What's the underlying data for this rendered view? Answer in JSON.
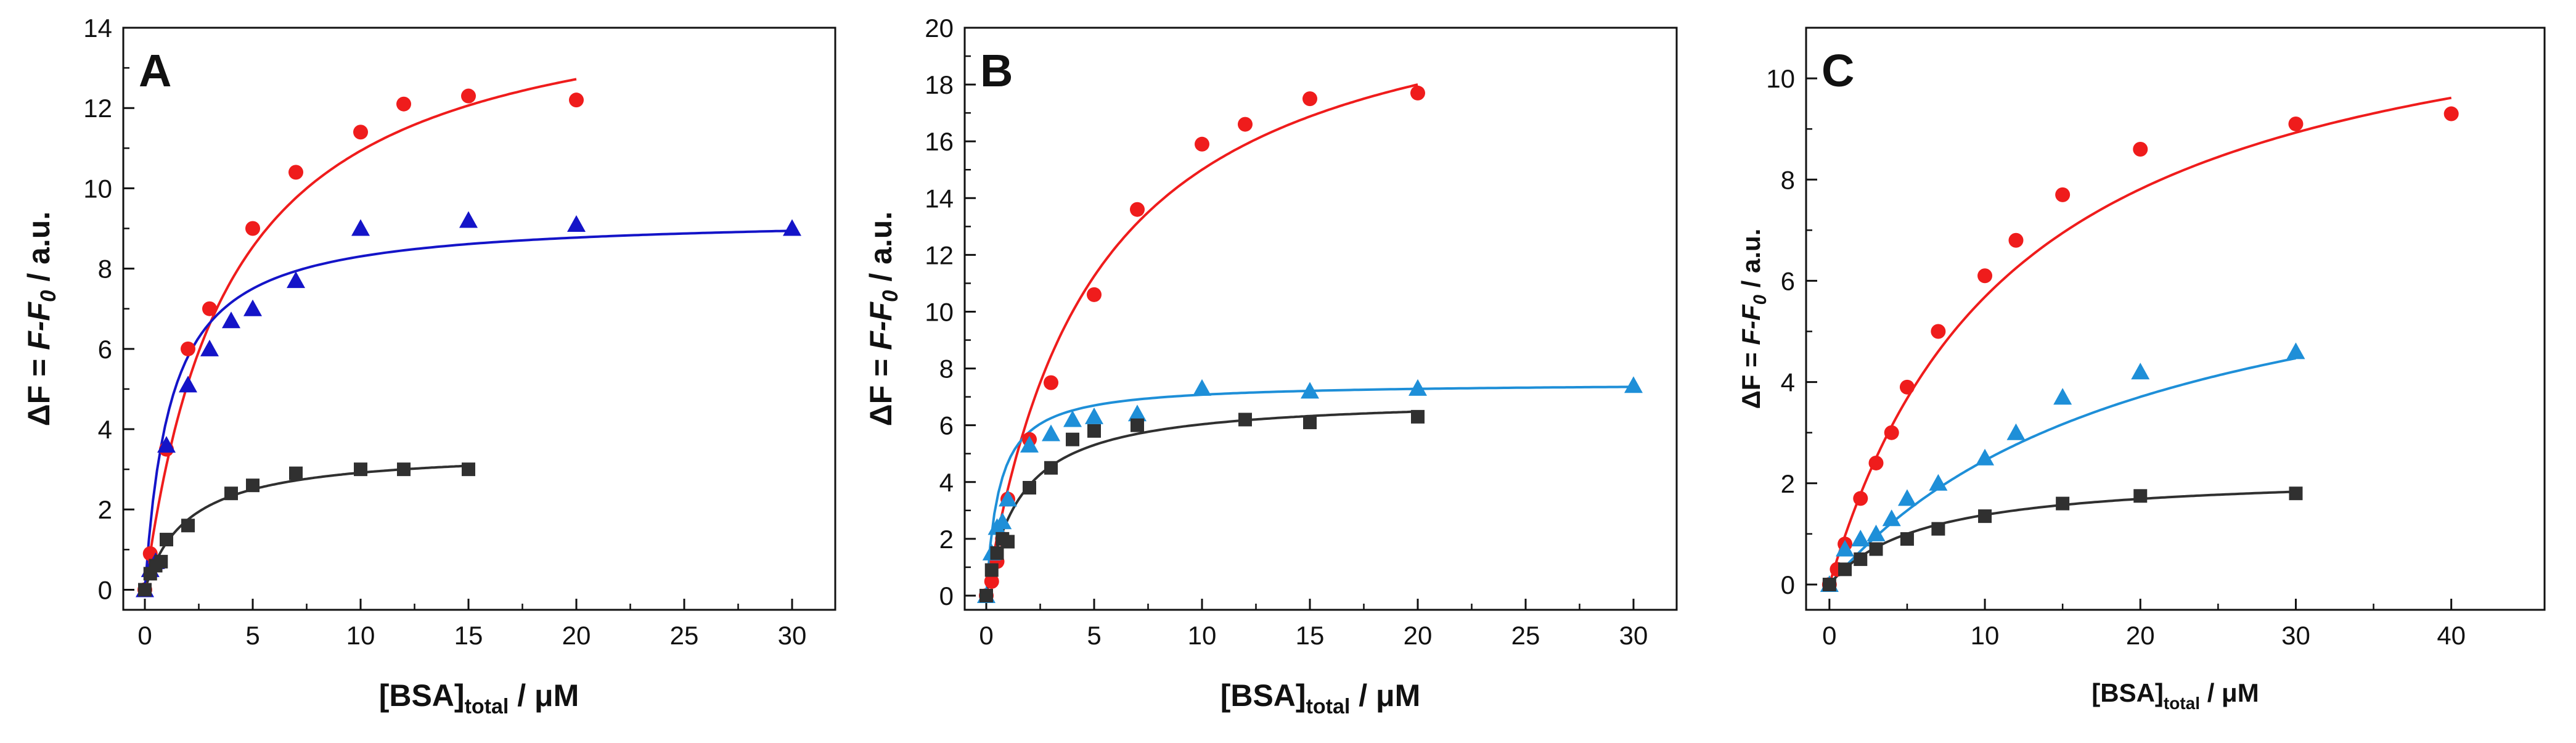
{
  "figure": {
    "colors": {
      "red": "#ef1c1c",
      "blue": "#1414c8",
      "lightblue": "#1e8fd8",
      "black": "#303030"
    }
  },
  "chart_data": [
    {
      "type": "scatter",
      "panel_label": "A",
      "xlabel": {
        "main": "[BSA]",
        "sub": "total",
        "unit": " / μM"
      },
      "ylabel": {
        "parts": [
          "ΔF = ",
          "F",
          "-",
          "F",
          "0",
          " / a.u."
        ]
      },
      "xlim": [
        -1,
        32
      ],
      "ylim": [
        -0.5,
        14
      ],
      "xticks": [
        0,
        5,
        10,
        15,
        20,
        25,
        30
      ],
      "yticks": [
        0,
        2,
        4,
        6,
        8,
        10,
        12,
        14
      ],
      "series": [
        {
          "name": "red",
          "marker": "circle",
          "color": "#ef1c1c",
          "x": [
            0,
            0.25,
            1,
            2,
            3,
            5,
            7,
            10,
            12,
            15,
            20
          ],
          "y": [
            0,
            0.9,
            3.5,
            6.0,
            7.0,
            9.0,
            10.4,
            11.4,
            12.1,
            12.3,
            12.2
          ],
          "fit": {
            "model": "hyperbolic",
            "Fmax": 15.2,
            "Kd": 3.9,
            "xmin": 0,
            "xmax": 20
          }
        },
        {
          "name": "blue",
          "marker": "triangle",
          "color": "#1414c8",
          "x": [
            0,
            0.25,
            0.5,
            1,
            2,
            3,
            4,
            5,
            7,
            10,
            15,
            20,
            30
          ],
          "y": [
            0,
            0.5,
            0.7,
            3.6,
            5.1,
            6.0,
            6.7,
            7.0,
            7.7,
            9.0,
            9.2,
            9.1,
            9.0
          ],
          "fit": {
            "model": "hyperbolic",
            "Fmax": 9.3,
            "Kd": 1.2,
            "xmin": 0,
            "xmax": 30
          }
        },
        {
          "name": "black",
          "marker": "square",
          "color": "#303030",
          "x": [
            0,
            0.25,
            0.5,
            0.75,
            1,
            2,
            4,
            5,
            7,
            10,
            12,
            15
          ],
          "y": [
            0,
            0.4,
            0.6,
            0.7,
            1.25,
            1.6,
            2.4,
            2.6,
            2.9,
            3.0,
            3.0,
            3.0
          ],
          "fit": {
            "model": "hyperbolic",
            "Fmax": 3.5,
            "Kd": 2.0,
            "xmin": 0,
            "xmax": 15
          }
        }
      ]
    },
    {
      "type": "scatter",
      "panel_label": "B",
      "xlabel": {
        "main": "[BSA]",
        "sub": "total",
        "unit": " / μM"
      },
      "ylabel": {
        "parts": [
          "ΔF = ",
          "F",
          "-",
          "F",
          "0",
          " / a.u."
        ]
      },
      "xlim": [
        -1,
        32
      ],
      "ylim": [
        -0.5,
        20
      ],
      "xticks": [
        0,
        5,
        10,
        15,
        20,
        25,
        30
      ],
      "yticks": [
        0,
        2,
        4,
        6,
        8,
        10,
        12,
        14,
        16,
        18,
        20
      ],
      "series": [
        {
          "name": "red",
          "marker": "circle",
          "color": "#ef1c1c",
          "x": [
            0,
            0.25,
            0.5,
            0.75,
            1,
            2,
            3,
            5,
            7,
            10,
            12,
            15,
            20
          ],
          "y": [
            0,
            0.5,
            1.2,
            2.0,
            3.4,
            5.5,
            7.5,
            10.6,
            13.6,
            15.9,
            16.6,
            17.5,
            17.7
          ],
          "fit": {
            "model": "hyperbolic",
            "Fmax": 22.5,
            "Kd": 5.0,
            "xmin": 0,
            "xmax": 20
          }
        },
        {
          "name": "blue",
          "marker": "triangle",
          "color": "#1e8fd8",
          "x": [
            0,
            0.25,
            0.5,
            0.75,
            1,
            2,
            3,
            4,
            5,
            7,
            10,
            15,
            20,
            30
          ],
          "y": [
            0,
            1.5,
            2.4,
            2.6,
            3.4,
            5.3,
            5.7,
            6.2,
            6.3,
            6.4,
            7.3,
            7.2,
            7.3,
            7.4
          ],
          "fit": {
            "model": "hyperbolic",
            "Fmax": 7.5,
            "Kd": 0.6,
            "xmin": 0,
            "xmax": 30
          }
        },
        {
          "name": "black",
          "marker": "square",
          "color": "#303030",
          "x": [
            0,
            0.25,
            0.5,
            0.75,
            1,
            2,
            3,
            4,
            5,
            7,
            12,
            15,
            20
          ],
          "y": [
            0,
            0.9,
            1.5,
            2.0,
            1.9,
            3.8,
            4.5,
            5.5,
            5.8,
            6.0,
            6.2,
            6.1,
            6.3
          ],
          "fit": {
            "model": "hyperbolic",
            "Fmax": 7.0,
            "Kd": 1.6,
            "xmin": 0,
            "xmax": 20
          }
        }
      ]
    },
    {
      "type": "scatter",
      "panel_label": "C",
      "xlabel": {
        "main": "[BSA]",
        "sub": "total",
        "unit": " / μM"
      },
      "ylabel": {
        "parts": [
          "ΔF = ",
          "F",
          "-",
          "F",
          "0",
          " / a.u."
        ]
      },
      "xlim": [
        -1.5,
        46
      ],
      "ylim": [
        -0.5,
        11
      ],
      "xticks": [
        0,
        10,
        20,
        30,
        40
      ],
      "yticks": [
        0,
        2,
        4,
        6,
        8,
        10
      ],
      "series": [
        {
          "name": "red",
          "marker": "circle",
          "color": "#ef1c1c",
          "x": [
            0,
            0.5,
            1,
            2,
            3,
            4,
            5,
            7,
            10,
            12,
            15,
            20,
            30,
            40
          ],
          "y": [
            0,
            0.3,
            0.8,
            1.7,
            2.4,
            3.0,
            3.9,
            5.0,
            6.1,
            6.8,
            7.7,
            8.6,
            9.1,
            9.3
          ],
          "fit": {
            "model": "hyperbolic",
            "Fmax": 12.5,
            "Kd": 12.0,
            "xmin": 0,
            "xmax": 40
          }
        },
        {
          "name": "blue",
          "marker": "triangle",
          "color": "#1e8fd8",
          "x": [
            0,
            1,
            2,
            3,
            4,
            5,
            7,
            10,
            12,
            15,
            20,
            30
          ],
          "y": [
            0,
            0.7,
            0.9,
            1.0,
            1.3,
            1.7,
            2.0,
            2.5,
            3.0,
            3.7,
            4.2,
            4.6
          ],
          "fit": {
            "model": "hyperbolic",
            "Fmax": 7.6,
            "Kd": 21.0,
            "xmin": 0,
            "xmax": 30
          }
        },
        {
          "name": "black",
          "marker": "square",
          "color": "#303030",
          "x": [
            0,
            1,
            2,
            3,
            5,
            7,
            10,
            15,
            20,
            30
          ],
          "y": [
            0,
            0.3,
            0.5,
            0.7,
            0.9,
            1.1,
            1.35,
            1.6,
            1.75,
            1.8
          ],
          "fit": {
            "model": "hyperbolic",
            "Fmax": 2.2,
            "Kd": 6.0,
            "xmin": 0,
            "xmax": 30
          }
        }
      ]
    }
  ]
}
